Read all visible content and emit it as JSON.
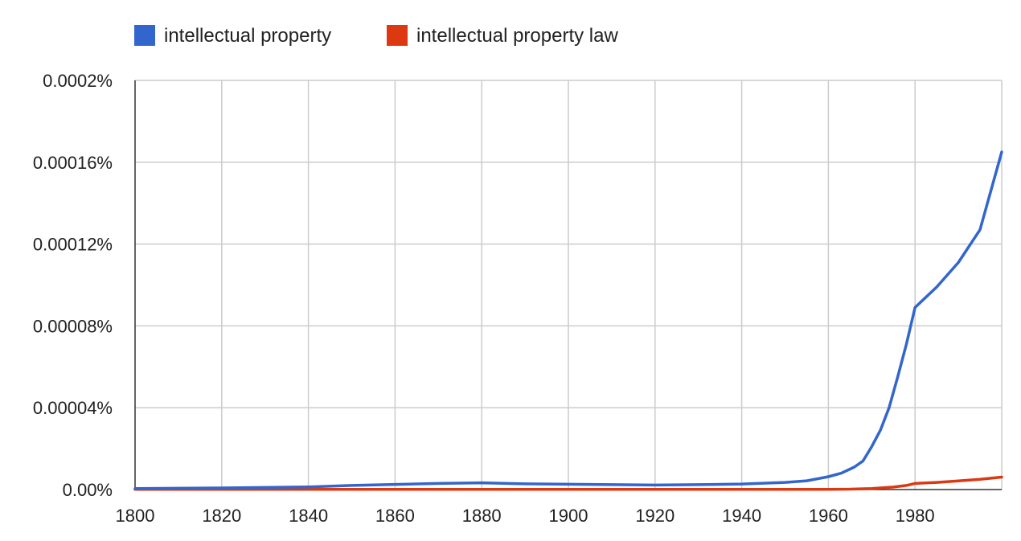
{
  "chart_data": {
    "type": "line",
    "x_ticks": [
      1800,
      1820,
      1840,
      1860,
      1880,
      1900,
      1920,
      1940,
      1960,
      1980
    ],
    "y_ticks": [
      {
        "value": 0,
        "label": "0.00%"
      },
      {
        "value": 4e-05,
        "label": "0.00004%"
      },
      {
        "value": 8e-05,
        "label": "0.00008%"
      },
      {
        "value": 0.00012,
        "label": "0.00012%"
      },
      {
        "value": 0.00016,
        "label": "0.00016%"
      },
      {
        "value": 0.0002,
        "label": "0.0002%"
      }
    ],
    "xlim": [
      1800,
      2000
    ],
    "ylim": [
      0,
      0.0002
    ],
    "grid": true,
    "legend_position": "top-left",
    "series": [
      {
        "name": "intellectual property",
        "color": "#3366cc",
        "points": [
          [
            1800,
            5e-07
          ],
          [
            1820,
            8e-07
          ],
          [
            1840,
            1.3e-06
          ],
          [
            1850,
            2e-06
          ],
          [
            1860,
            2.5e-06
          ],
          [
            1870,
            3e-06
          ],
          [
            1880,
            3.3e-06
          ],
          [
            1890,
            2.8e-06
          ],
          [
            1900,
            2.6e-06
          ],
          [
            1910,
            2.4e-06
          ],
          [
            1920,
            2.2e-06
          ],
          [
            1930,
            2.4e-06
          ],
          [
            1940,
            2.7e-06
          ],
          [
            1950,
            3.5e-06
          ],
          [
            1955,
            4.3e-06
          ],
          [
            1960,
            6.3e-06
          ],
          [
            1963,
            8e-06
          ],
          [
            1966,
            1.1e-05
          ],
          [
            1968,
            1.4e-05
          ],
          [
            1970,
            2.1e-05
          ],
          [
            1972,
            2.9e-05
          ],
          [
            1974,
            4e-05
          ],
          [
            1976,
            5.5e-05
          ],
          [
            1978,
            7.1e-05
          ],
          [
            1980,
            8.9e-05
          ],
          [
            1985,
            9.9e-05
          ],
          [
            1990,
            0.000111
          ],
          [
            1995,
            0.000127
          ],
          [
            2000,
            0.000165
          ]
        ]
      },
      {
        "name": "intellectual property law",
        "color": "#dc3912",
        "points": [
          [
            1800,
            1e-07
          ],
          [
            1900,
            1e-07
          ],
          [
            1960,
            1e-07
          ],
          [
            1965,
            2e-07
          ],
          [
            1970,
            5e-07
          ],
          [
            1975,
            1.2e-06
          ],
          [
            1978,
            2e-06
          ],
          [
            1980,
            3e-06
          ],
          [
            1985,
            3.5e-06
          ],
          [
            1990,
            4.2e-06
          ],
          [
            1995,
            5e-06
          ],
          [
            2000,
            6.1e-06
          ]
        ]
      }
    ]
  }
}
